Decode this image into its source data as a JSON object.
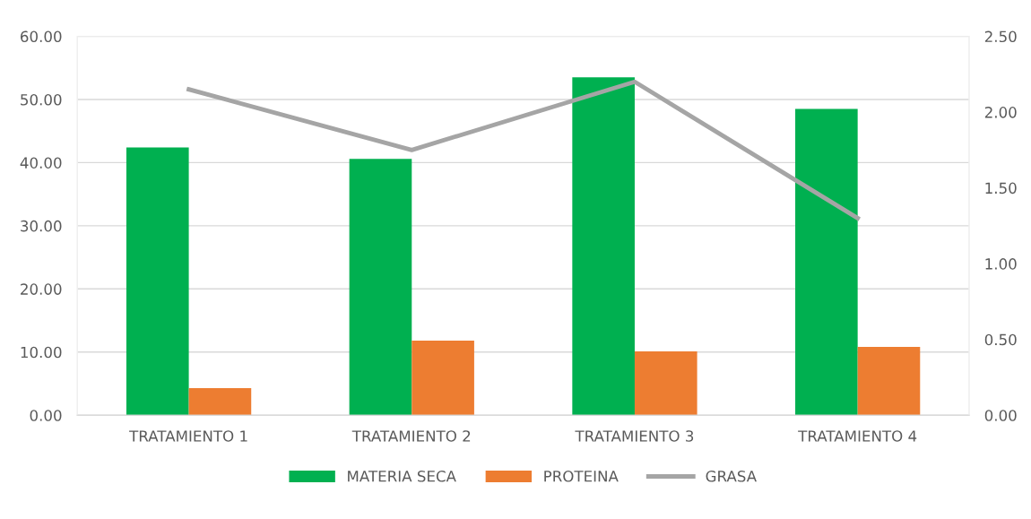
{
  "chart_data": {
    "type": "bar",
    "categories": [
      "TRATAMIENTO 1",
      "TRATAMIENTO 2",
      "TRATAMIENTO 3",
      "TRATAMIENTO 4"
    ],
    "series": [
      {
        "name": "MATERIA SECA",
        "color": "#00b050",
        "values": [
          42.4,
          40.6,
          53.5,
          48.5
        ]
      },
      {
        "name": "PROTEINA",
        "color": "#ed7d31",
        "values": [
          4.3,
          11.8,
          10.1,
          10.8
        ]
      },
      {
        "name": "GRASA",
        "color": "#a5a5a5",
        "type": "line",
        "axis": "y2",
        "values": [
          2.15,
          1.75,
          2.2,
          1.3
        ]
      }
    ],
    "ylim": [
      0,
      60
    ],
    "yticks": [
      {
        "value": 0,
        "label": "0.00"
      },
      {
        "value": 10,
        "label": "10.00"
      },
      {
        "value": 20,
        "label": "20.00"
      },
      {
        "value": 30,
        "label": "30.00"
      },
      {
        "value": 40,
        "label": "40.00"
      },
      {
        "value": 50,
        "label": "50.00"
      },
      {
        "value": 60,
        "label": "60.00"
      }
    ],
    "y2lim": [
      0,
      2.5
    ],
    "y2ticks": [
      {
        "value": 0,
        "label": "0.00"
      },
      {
        "value": 0.5,
        "label": "0.50"
      },
      {
        "value": 1,
        "label": "1.00"
      },
      {
        "value": 1.5,
        "label": "1.50"
      },
      {
        "value": 2,
        "label": "2.00"
      },
      {
        "value": 2.5,
        "label": "2.50"
      }
    ],
    "grid": "y",
    "legend": "bottom",
    "marker": "none",
    "line_style": "solid"
  }
}
